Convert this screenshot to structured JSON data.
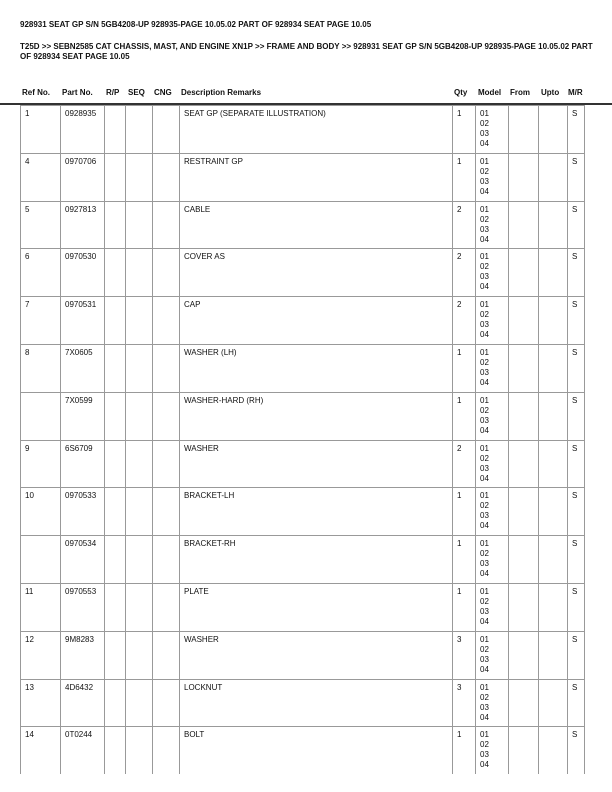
{
  "title": "928931 SEAT GP S/N 5GB4208-UP 928935-PAGE 10.05.02 PART OF 928934 SEAT PAGE 10.05",
  "breadcrumb": "T25D >> SEBN2585 CAT CHASSIS, MAST, AND ENGINE XN1P >> FRAME AND BODY >> 928931 SEAT GP S/N 5GB4208-UP 928935-PAGE 10.05.02 PART OF 928934 SEAT PAGE 10.05",
  "headers": [
    "Ref No.",
    "Part No.",
    "R/P",
    "SEQ",
    "CNG",
    "Description Remarks",
    "Qty",
    "Model",
    "From",
    "Upto",
    "M/R"
  ],
  "rows": [
    {
      "ref": "1",
      "part": "0928935",
      "desc": "SEAT GP (SEPARATE ILLUSTRATION)",
      "qty": "1",
      "model": "01\n02\n03\n04",
      "mr": "S"
    },
    {
      "ref": "4",
      "part": "0970706",
      "desc": "RESTRAINT GP",
      "qty": "1",
      "model": "01\n02\n03\n04",
      "mr": "S"
    },
    {
      "ref": "5",
      "part": "0927813",
      "desc": "CABLE",
      "qty": "2",
      "model": "01\n02\n03\n04",
      "mr": "S"
    },
    {
      "ref": "6",
      "part": "0970530",
      "desc": "COVER AS",
      "qty": "2",
      "model": "01\n02\n03\n04",
      "mr": "S"
    },
    {
      "ref": "7",
      "part": "0970531",
      "desc": "CAP",
      "qty": "2",
      "model": "01\n02\n03\n04",
      "mr": "S"
    },
    {
      "ref": "8",
      "part": "7X0605",
      "desc": "WASHER (LH)",
      "qty": "1",
      "model": "01\n02\n03\n04",
      "mr": "S"
    },
    {
      "ref": "",
      "part": "7X0599",
      "desc": "WASHER-HARD (RH)",
      "qty": "1",
      "model": "01\n02\n03\n04",
      "mr": "S"
    },
    {
      "ref": "9",
      "part": "6S6709",
      "desc": "WASHER",
      "qty": "2",
      "model": "01\n02\n03\n04",
      "mr": "S"
    },
    {
      "ref": "10",
      "part": "0970533",
      "desc": "BRACKET-LH",
      "qty": "1",
      "model": "01\n02\n03\n04",
      "mr": "S"
    },
    {
      "ref": "",
      "part": "0970534",
      "desc": "BRACKET-RH",
      "qty": "1",
      "model": "01\n02\n03\n04",
      "mr": "S"
    },
    {
      "ref": "11",
      "part": "0970553",
      "desc": "PLATE",
      "qty": "1",
      "model": "01\n02\n03\n04",
      "mr": "S"
    },
    {
      "ref": "12",
      "part": "9M8283",
      "desc": "WASHER",
      "qty": "3",
      "model": "01\n02\n03\n04",
      "mr": "S"
    },
    {
      "ref": "13",
      "part": "4D6432",
      "desc": "LOCKNUT",
      "qty": "3",
      "model": "01\n02\n03\n04",
      "mr": "S"
    },
    {
      "ref": "14",
      "part": "0T0244",
      "desc": "BOLT",
      "qty": "1",
      "model": "01\n02\n03\n04",
      "mr": "S"
    }
  ]
}
